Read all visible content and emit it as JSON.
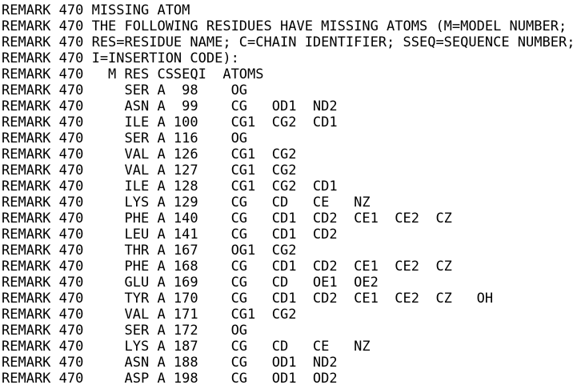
{
  "document": {
    "lines": [
      "REMARK 470 MISSING ATOM",
      "REMARK 470 THE FOLLOWING RESIDUES HAVE MISSING ATOMS (M=MODEL NUMBER;",
      "REMARK 470 RES=RESIDUE NAME; C=CHAIN IDENTIFIER; SSEQ=SEQUENCE NUMBER;",
      "REMARK 470 I=INSERTION CODE):",
      "REMARK 470   M RES CSSEQI  ATOMS",
      "REMARK 470     SER A  98    OG",
      "REMARK 470     ASN A  99    CG   OD1  ND2",
      "REMARK 470     ILE A 100    CG1  CG2  CD1",
      "REMARK 470     SER A 116    OG",
      "REMARK 470     VAL A 126    CG1  CG2",
      "REMARK 470     VAL A 127    CG1  CG2",
      "REMARK 470     ILE A 128    CG1  CG2  CD1",
      "REMARK 470     LYS A 129    CG   CD   CE   NZ",
      "REMARK 470     PHE A 140    CG   CD1  CD2  CE1  CE2  CZ",
      "REMARK 470     LEU A 141    CG   CD1  CD2",
      "REMARK 470     THR A 167    OG1  CG2",
      "REMARK 470     PHE A 168    CG   CD1  CD2  CE1  CE2  CZ",
      "REMARK 470     GLU A 169    CG   CD   OE1  OE2",
      "REMARK 470     TYR A 170    CG   CD1  CD2  CE1  CE2  CZ   OH",
      "REMARK 470     VAL A 171    CG1  CG2",
      "REMARK 470     SER A 172    OG",
      "REMARK 470     LYS A 187    CG   CD   CE   NZ",
      "REMARK 470     ASN A 188    CG   OD1  ND2",
      "REMARK 470     ASP A 198    CG   OD1  OD2"
    ]
  }
}
